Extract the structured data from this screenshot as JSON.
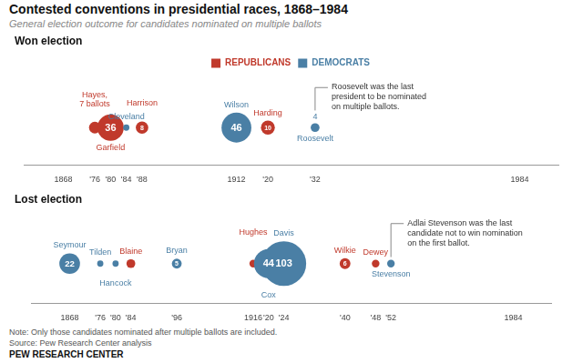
{
  "title": "Contested conventions in presidential races, 1868–1984",
  "subtitle": "General election outcome for candidates nominated on multiple ballots",
  "note": "Note: Only those candidates nominated after multiple ballots are included.",
  "source": "Source: Pew Research Center analysis",
  "footer": "PEW RESEARCH CENTER",
  "legend_entries": [
    {
      "name": "REPUBLICANS",
      "color": "#c0392b"
    },
    {
      "name": "DEMOCRATS",
      "color": "#4a7fa5"
    }
  ],
  "chart_data": [
    {
      "type": "bubble",
      "title": "Won election",
      "legend": "top",
      "names": [
        "Hayes,\n7 ballots",
        "Garfield",
        "Cleveland",
        "Harrison",
        "Wilson",
        "Harding",
        "Roosevelt"
      ],
      "x": [
        1876,
        1880,
        1884,
        1888,
        1912,
        1920,
        1932
      ],
      "values": [
        0,
        0,
        0,
        0,
        0,
        0,
        0
      ],
      "ballots": [
        7,
        36,
        2,
        8,
        46,
        10,
        4
      ],
      "ballot_labels": [
        null,
        "36",
        null,
        "8",
        "46",
        "10",
        "4"
      ],
      "colors": [
        "#c0392b",
        "#c0392b",
        "#4a7fa5",
        "#c0392b",
        "#4a7fa5",
        "#c0392b",
        "#4a7fa5"
      ],
      "annotation": "Roosevelt was the last\npresident to be nominated\non multiple ballots.",
      "xlim": [
        1858,
        1994
      ],
      "xticks": [
        1868,
        {
          "value": 1876,
          "label": "'76"
        },
        {
          "value": 1880,
          "label": "'80"
        },
        {
          "value": 1884,
          "label": "'84"
        },
        {
          "value": 1888,
          "label": "'88"
        },
        1912,
        {
          "value": 1920,
          "label": "'20"
        },
        {
          "value": 1932,
          "label": "'32"
        },
        1984
      ],
      "ylim": [
        -2.2,
        3.0
      ],
      "tick_labels": "x",
      "grid": false
    },
    {
      "type": "bubble",
      "title": "Lost election",
      "names": [
        "Seymour",
        "Tilden",
        "Hancock",
        "Blaine",
        "Bryan",
        "Hughes",
        "Cox",
        "Davis",
        "Wilkie",
        "Dewey",
        "Stevenson"
      ],
      "x": [
        1868,
        1876,
        1880,
        1884,
        1896,
        1916,
        1920,
        1924,
        1940,
        1948,
        1952
      ],
      "values": [
        0,
        0,
        0,
        0,
        0,
        0,
        0,
        0,
        0,
        0,
        0
      ],
      "ballots": [
        22,
        2,
        2,
        4,
        5,
        3,
        44,
        103,
        6,
        3,
        3
      ],
      "ballot_labels": [
        "22",
        null,
        null,
        null,
        "5",
        null,
        "44",
        "103",
        "6",
        null,
        null
      ],
      "colors": [
        "#4a7fa5",
        "#4a7fa5",
        "#4a7fa5",
        "#c0392b",
        "#4a7fa5",
        "#c0392b",
        "#4a7fa5",
        "#4a7fa5",
        "#c0392b",
        "#c0392b",
        "#4a7fa5"
      ],
      "annotation": "Adlai Stevenson was the last\ncandidate not to win nomination\non the first ballot.",
      "xlim": [
        1858,
        1994
      ],
      "xticks": [
        1868,
        {
          "value": 1876,
          "label": "'76"
        },
        {
          "value": 1880,
          "label": "'80"
        },
        {
          "value": 1884,
          "label": "'84"
        },
        {
          "value": 1896,
          "label": "'96"
        },
        1916,
        {
          "value": 1920,
          "label": "'20"
        },
        {
          "value": 1924,
          "label": "'24"
        },
        {
          "value": 1940,
          "label": "'40"
        },
        {
          "value": 1948,
          "label": "'48"
        },
        {
          "value": 1952,
          "label": "'52"
        },
        1984
      ],
      "ylim": [
        -2.2,
        3.0
      ],
      "tick_labels": "x",
      "grid": false
    }
  ]
}
